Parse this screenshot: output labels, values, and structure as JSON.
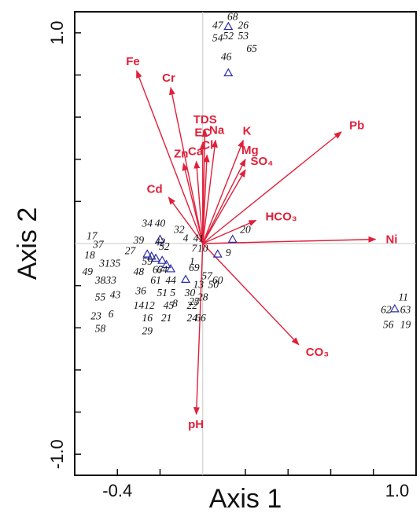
{
  "chart_data": {
    "type": "scatter",
    "subtype": "biplot",
    "xlabel": "Axis 1",
    "ylabel": "Axis 2",
    "xlim": [
      -0.6,
      1.0
    ],
    "ylim": [
      -1.1,
      1.1
    ],
    "x_tick_labels": [
      {
        "value": -0.4,
        "label": "-0.4"
      },
      {
        "value": 1.0,
        "label": "1.0"
      }
    ],
    "y_tick_labels": [
      {
        "value": 1.0,
        "label": "1.0"
      },
      {
        "value": -1.0,
        "label": "-1.0"
      }
    ],
    "x_ticks": [
      -0.4,
      -0.2,
      0.2,
      0.4,
      0.6,
      0.8
    ],
    "y_ticks": [
      -0.8,
      -0.6,
      -0.4,
      -0.2,
      0.2,
      0.4,
      0.6,
      0.8
    ],
    "reference_lines": {
      "x": 0,
      "y": 0
    },
    "grid": false,
    "legend": "none",
    "arrow_color": "#e0203a",
    "point_color": "#2b2ba8",
    "vectors": [
      {
        "name": "Fe",
        "label": "Fe",
        "x": -0.31,
        "y": 0.82
      },
      {
        "name": "Cr",
        "label": "Cr",
        "x": -0.15,
        "y": 0.74
      },
      {
        "name": "TDS",
        "label": "TDS",
        "x": 0.01,
        "y": 0.54
      },
      {
        "name": "EC",
        "label": "EC",
        "x": 0.0,
        "y": 0.48
      },
      {
        "name": "Na",
        "label": "Na",
        "x": 0.06,
        "y": 0.49
      },
      {
        "name": "K",
        "label": "K",
        "x": 0.19,
        "y": 0.49
      },
      {
        "name": "Ca",
        "label": "Ca",
        "x": -0.03,
        "y": 0.39
      },
      {
        "name": "Cl",
        "label": "Cl",
        "x": 0.02,
        "y": 0.42
      },
      {
        "name": "Zn",
        "label": "Zn",
        "x": -0.09,
        "y": 0.38
      },
      {
        "name": "Mg",
        "label": "Mg",
        "x": 0.2,
        "y": 0.4
      },
      {
        "name": "SO4",
        "label": "SO₄",
        "x": 0.2,
        "y": 0.35
      },
      {
        "name": "Cd",
        "label": "Cd",
        "x": -0.16,
        "y": 0.22
      },
      {
        "name": "Pb",
        "label": "Pb",
        "x": 0.65,
        "y": 0.53
      },
      {
        "name": "HCO3",
        "label": "HCO₃",
        "x": 0.25,
        "y": 0.11
      },
      {
        "name": "Ni",
        "label": "Ni",
        "x": 0.81,
        "y": 0.02
      },
      {
        "name": "CO3",
        "label": "CO₃",
        "x": 0.45,
        "y": -0.48
      },
      {
        "name": "pH",
        "label": "pH",
        "x": -0.03,
        "y": -0.81
      }
    ],
    "sites": [
      {
        "x": 0.12,
        "y": 1.03,
        "labels": [
          {
            "text": "68",
            "dx": 0.02,
            "dy": 0.03
          },
          {
            "text": "47",
            "dx": -0.05,
            "dy": -0.01
          },
          {
            "text": "26",
            "dx": 0.07,
            "dy": -0.01
          },
          {
            "text": "54",
            "dx": -0.05,
            "dy": -0.07
          },
          {
            "text": "52",
            "dx": 0.0,
            "dy": -0.06
          },
          {
            "text": "53",
            "dx": 0.07,
            "dy": -0.06
          },
          {
            "text": "65",
            "dx": 0.11,
            "dy": -0.12
          }
        ]
      },
      {
        "x": 0.12,
        "y": 0.81,
        "labels": [
          {
            "text": "46",
            "dx": -0.01,
            "dy": 0.06
          }
        ]
      },
      {
        "x": 0.14,
        "y": 0.02,
        "labels": [
          {
            "text": "20",
            "dx": 0.06,
            "dy": 0.03
          }
        ]
      },
      {
        "x": 0.07,
        "y": -0.05,
        "labels": [
          {
            "text": "9",
            "dx": 0.05,
            "dy": -0.01
          }
        ]
      },
      {
        "x": -0.2,
        "y": 0.02,
        "labels": [
          {
            "text": "34",
            "dx": -0.06,
            "dy": 0.06
          },
          {
            "text": "40",
            "dx": 0.0,
            "dy": 0.06
          },
          {
            "text": "32",
            "dx": 0.09,
            "dy": 0.03
          }
        ]
      },
      {
        "x": -0.26,
        "y": -0.05,
        "labels": [
          {
            "text": "17",
            "dx": -0.26,
            "dy": 0.07
          },
          {
            "text": "39",
            "dx": -0.04,
            "dy": 0.05
          },
          {
            "text": "37",
            "dx": -0.23,
            "dy": 0.03
          },
          {
            "text": "27",
            "dx": -0.08,
            "dy": 0.0
          },
          {
            "text": "18",
            "dx": -0.27,
            "dy": -0.02
          },
          {
            "text": "31",
            "dx": -0.2,
            "dy": -0.06
          },
          {
            "text": "35",
            "dx": -0.15,
            "dy": -0.06
          },
          {
            "text": "49",
            "dx": -0.28,
            "dy": -0.1
          },
          {
            "text": "38",
            "dx": -0.22,
            "dy": -0.14
          },
          {
            "text": "33",
            "dx": -0.17,
            "dy": -0.14
          },
          {
            "text": "55",
            "dx": -0.22,
            "dy": -0.22
          },
          {
            "text": "43",
            "dx": -0.15,
            "dy": -0.21
          },
          {
            "text": "23",
            "dx": -0.24,
            "dy": -0.31
          },
          {
            "text": "6",
            "dx": -0.17,
            "dy": -0.3
          },
          {
            "text": "58",
            "dx": -0.22,
            "dy": -0.37
          }
        ]
      },
      {
        "x": -0.24,
        "y": -0.06,
        "labels": []
      },
      {
        "x": -0.22,
        "y": -0.07,
        "labels": [
          {
            "text": "42",
            "dx": 0.02,
            "dy": 0.06
          },
          {
            "text": "59",
            "dx": -0.04,
            "dy": -0.03
          },
          {
            "text": "48",
            "dx": -0.08,
            "dy": -0.08
          },
          {
            "text": "36",
            "dx": -0.07,
            "dy": -0.17
          },
          {
            "text": "12",
            "dx": -0.03,
            "dy": -0.24
          },
          {
            "text": "14",
            "dx": -0.08,
            "dy": -0.24
          },
          {
            "text": "16",
            "dx": -0.04,
            "dy": -0.3
          },
          {
            "text": "29",
            "dx": -0.04,
            "dy": -0.36
          }
        ]
      },
      {
        "x": -0.19,
        "y": -0.08,
        "labels": [
          {
            "text": "52",
            "dx": 0.01,
            "dy": 0.05
          },
          {
            "text": "67",
            "dx": -0.02,
            "dy": -0.06
          },
          {
            "text": "61",
            "dx": -0.03,
            "dy": -0.11
          },
          {
            "text": "51",
            "dx": 0.0,
            "dy": -0.17
          },
          {
            "text": "45",
            "dx": 0.03,
            "dy": -0.23
          },
          {
            "text": "21",
            "dx": 0.02,
            "dy": -0.29
          }
        ]
      },
      {
        "x": -0.17,
        "y": -0.1,
        "labels": [
          {
            "text": "64",
            "dx": -0.02,
            "dy": -0.04
          },
          {
            "text": "44",
            "dx": 0.02,
            "dy": -0.09
          },
          {
            "text": "5",
            "dx": 0.03,
            "dy": -0.15
          },
          {
            "text": "8",
            "dx": 0.04,
            "dy": -0.2
          }
        ]
      },
      {
        "x": -0.15,
        "y": -0.12,
        "labels": [
          {
            "text": "4",
            "dx": 0.07,
            "dy": 0.13
          },
          {
            "text": "41",
            "dx": 0.13,
            "dy": 0.13
          },
          {
            "text": "7",
            "dx": 0.11,
            "dy": 0.08
          },
          {
            "text": "10",
            "dx": 0.15,
            "dy": 0.08
          },
          {
            "text": "1",
            "dx": 0.1,
            "dy": 0.02
          },
          {
            "text": "30",
            "dx": 0.09,
            "dy": -0.13
          },
          {
            "text": "22",
            "dx": 0.1,
            "dy": -0.19
          },
          {
            "text": "24",
            "dx": 0.1,
            "dy": -0.25
          }
        ]
      },
      {
        "x": -0.08,
        "y": -0.17,
        "labels": [
          {
            "text": "69",
            "dx": 0.04,
            "dy": 0.04
          },
          {
            "text": "57",
            "dx": 0.1,
            "dy": 0.0
          },
          {
            "text": "60",
            "dx": 0.15,
            "dy": -0.02
          },
          {
            "text": "13",
            "dx": 0.06,
            "dy": -0.04
          },
          {
            "text": "50",
            "dx": 0.13,
            "dy": -0.04
          },
          {
            "text": "28",
            "dx": 0.08,
            "dy": -0.1
          },
          {
            "text": "25",
            "dx": 0.04,
            "dy": -0.12
          },
          {
            "text": "66",
            "dx": 0.07,
            "dy": -0.2
          }
        ]
      },
      {
        "x": 0.9,
        "y": -0.31,
        "labels": [
          {
            "text": "11",
            "dx": 0.04,
            "dy": 0.04
          },
          {
            "text": "62",
            "dx": -0.04,
            "dy": -0.02
          },
          {
            "text": "63",
            "dx": 0.05,
            "dy": -0.02
          },
          {
            "text": "56",
            "dx": -0.03,
            "dy": -0.09
          },
          {
            "text": "19",
            "dx": 0.05,
            "dy": -0.09
          }
        ]
      }
    ]
  }
}
